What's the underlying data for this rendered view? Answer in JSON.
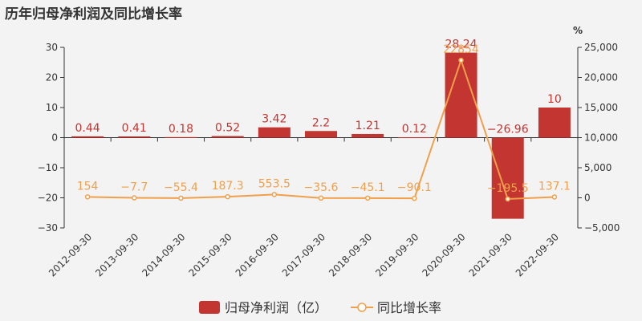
{
  "title": "历年归母净利润及同比增长率",
  "chart_data": {
    "type": "bar",
    "title": "历年归母净利润及同比增长率",
    "categories": [
      "2012-09-30",
      "2013-09-30",
      "2014-09-30",
      "2015-09-30",
      "2016-09-30",
      "2017-09-30",
      "2018-09-30",
      "2019-09-30",
      "2020-09-30",
      "2021-09-30",
      "2022-09-30"
    ],
    "series": [
      {
        "name": "归母净利润（亿）",
        "type": "bar",
        "axis": "left",
        "color": "#c23531",
        "values": [
          0.44,
          0.41,
          0.18,
          0.52,
          3.42,
          2.2,
          1.21,
          0.12,
          28.24,
          -26.96,
          10
        ],
        "labels": [
          "0.44",
          "0.41",
          "0.18",
          "0.52",
          "3.42",
          "2.2",
          "1.21",
          "0.12",
          "28.24",
          "−26.96",
          "10"
        ]
      },
      {
        "name": "同比增长率",
        "type": "line",
        "axis": "right",
        "color": "#f0a04b",
        "values": [
          154,
          -7.7,
          -55.4,
          187.3,
          553.5,
          -35.6,
          -45.1,
          -90.1,
          22854,
          -195.5,
          137.1
        ],
        "labels": [
          "154",
          "−7.7",
          "−55.4",
          "187.3",
          "553.5",
          "−35.6",
          "−45.1",
          "−90.1",
          "22854",
          "−195.5",
          "137.1"
        ]
      }
    ],
    "y_left": {
      "min": -30,
      "max": 30,
      "ticks": [
        30,
        20,
        10,
        0,
        -10,
        -20,
        -30
      ],
      "tick_labels": [
        "30",
        "20",
        "10",
        "0",
        "−10",
        "−20",
        "−30"
      ]
    },
    "y_right": {
      "min": -5000,
      "max": 25000,
      "unit": "%",
      "ticks": [
        25000,
        20000,
        15000,
        10000,
        5000,
        0,
        -5000
      ],
      "tick_labels": [
        "25,000",
        "20,000",
        "15,000",
        "10,000",
        "5,000",
        "0",
        "−5,000"
      ]
    },
    "grid": false,
    "legend": "bottom-center"
  }
}
